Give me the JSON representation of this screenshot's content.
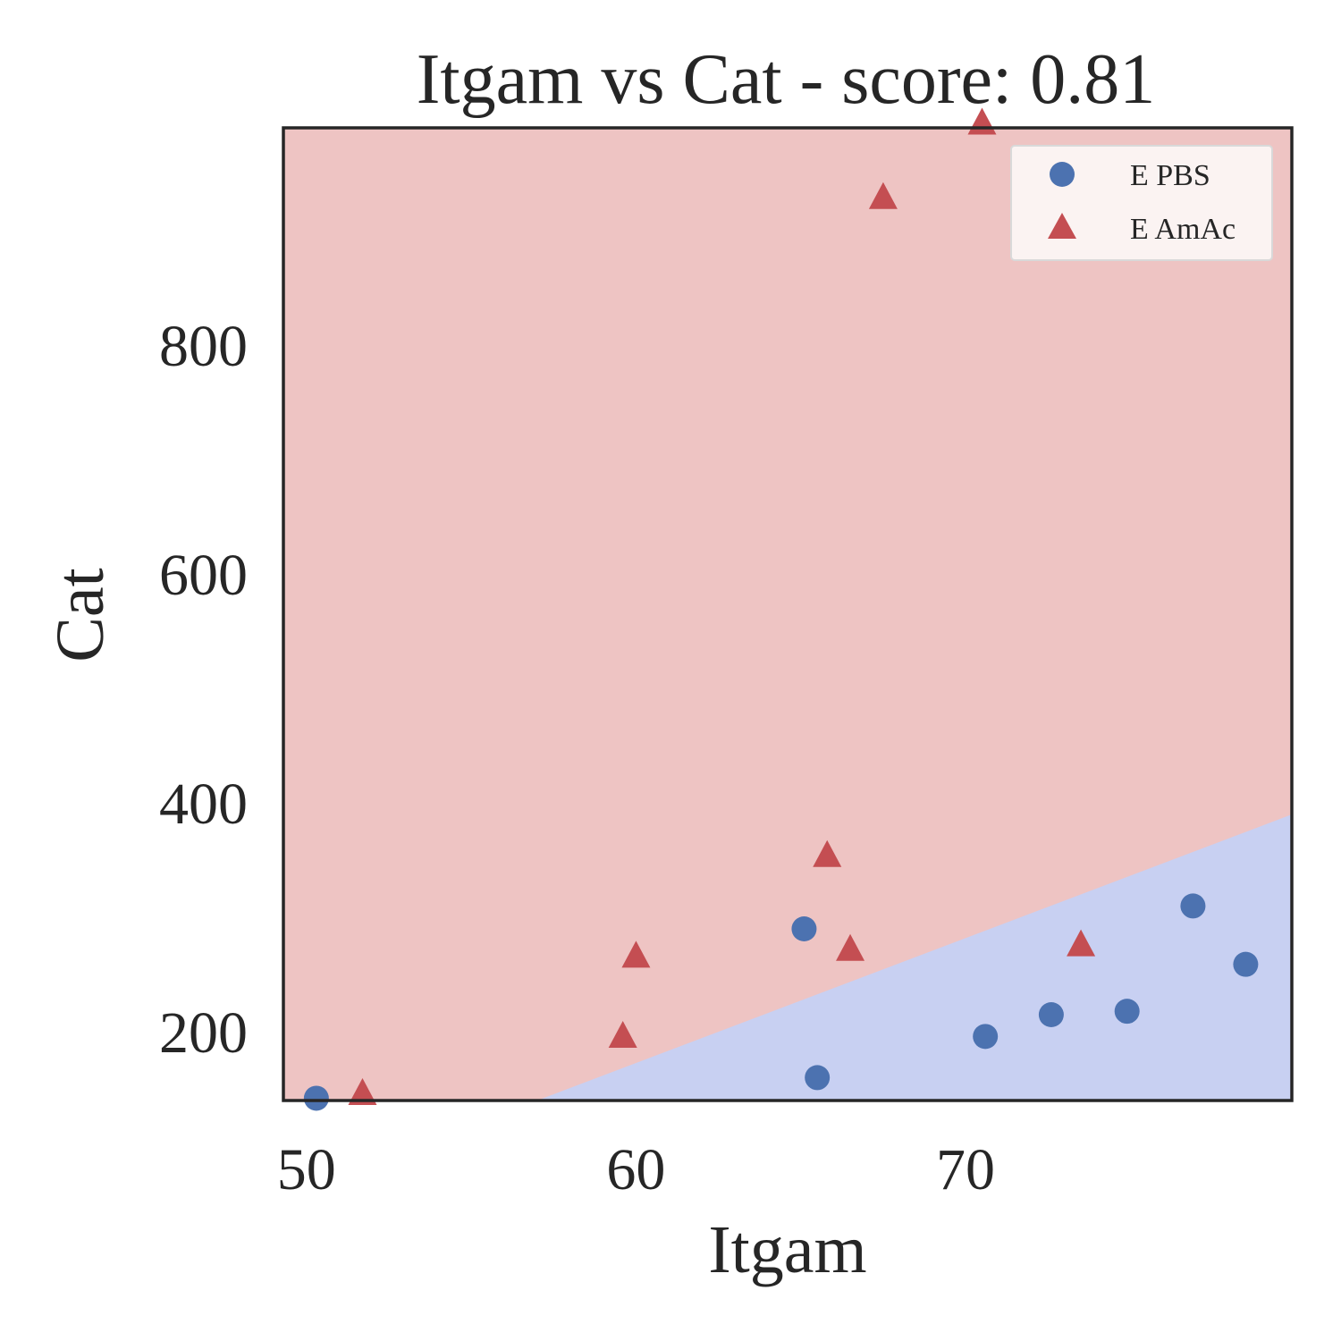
{
  "chart_data": {
    "type": "scatter",
    "title": "Itgam vs Cat - score: 0.81",
    "xlabel": "Itgam",
    "ylabel": "Cat",
    "xlim": [
      49.3,
      79.9
    ],
    "ylim": [
      140,
      990
    ],
    "xticks": [
      50,
      60,
      70
    ],
    "xtick_labels": [
      "50",
      "60",
      "70"
    ],
    "yticks": [
      200,
      400,
      600,
      800
    ],
    "ytick_labels": [
      "200",
      "400",
      "600",
      "800"
    ],
    "grid": false,
    "legend_position": "top-right",
    "regions": {
      "decision_boundary": [
        [
          57.0,
          140
        ],
        [
          79.9,
          390
        ]
      ],
      "upper_label": "E AmAc",
      "lower_label": "E PBS",
      "upper_color": "#eec4c3",
      "lower_color": "#c8d0f2"
    },
    "series": [
      {
        "name": "E PBS",
        "marker": "circle",
        "color": "#4c72b0",
        "points": [
          [
            50.3,
            142
          ],
          [
            65.1,
            290
          ],
          [
            65.5,
            160
          ],
          [
            70.6,
            196
          ],
          [
            72.6,
            215
          ],
          [
            74.9,
            218
          ],
          [
            76.9,
            310
          ],
          [
            78.5,
            259
          ]
        ]
      },
      {
        "name": "E AmAc",
        "marker": "triangle",
        "color": "#c44e52",
        "points": [
          [
            51.7,
            145
          ],
          [
            59.6,
            195
          ],
          [
            60.0,
            265
          ],
          [
            65.8,
            353
          ],
          [
            66.5,
            271
          ],
          [
            67.5,
            928
          ],
          [
            70.5,
            993
          ],
          [
            73.5,
            275
          ]
        ]
      }
    ]
  }
}
